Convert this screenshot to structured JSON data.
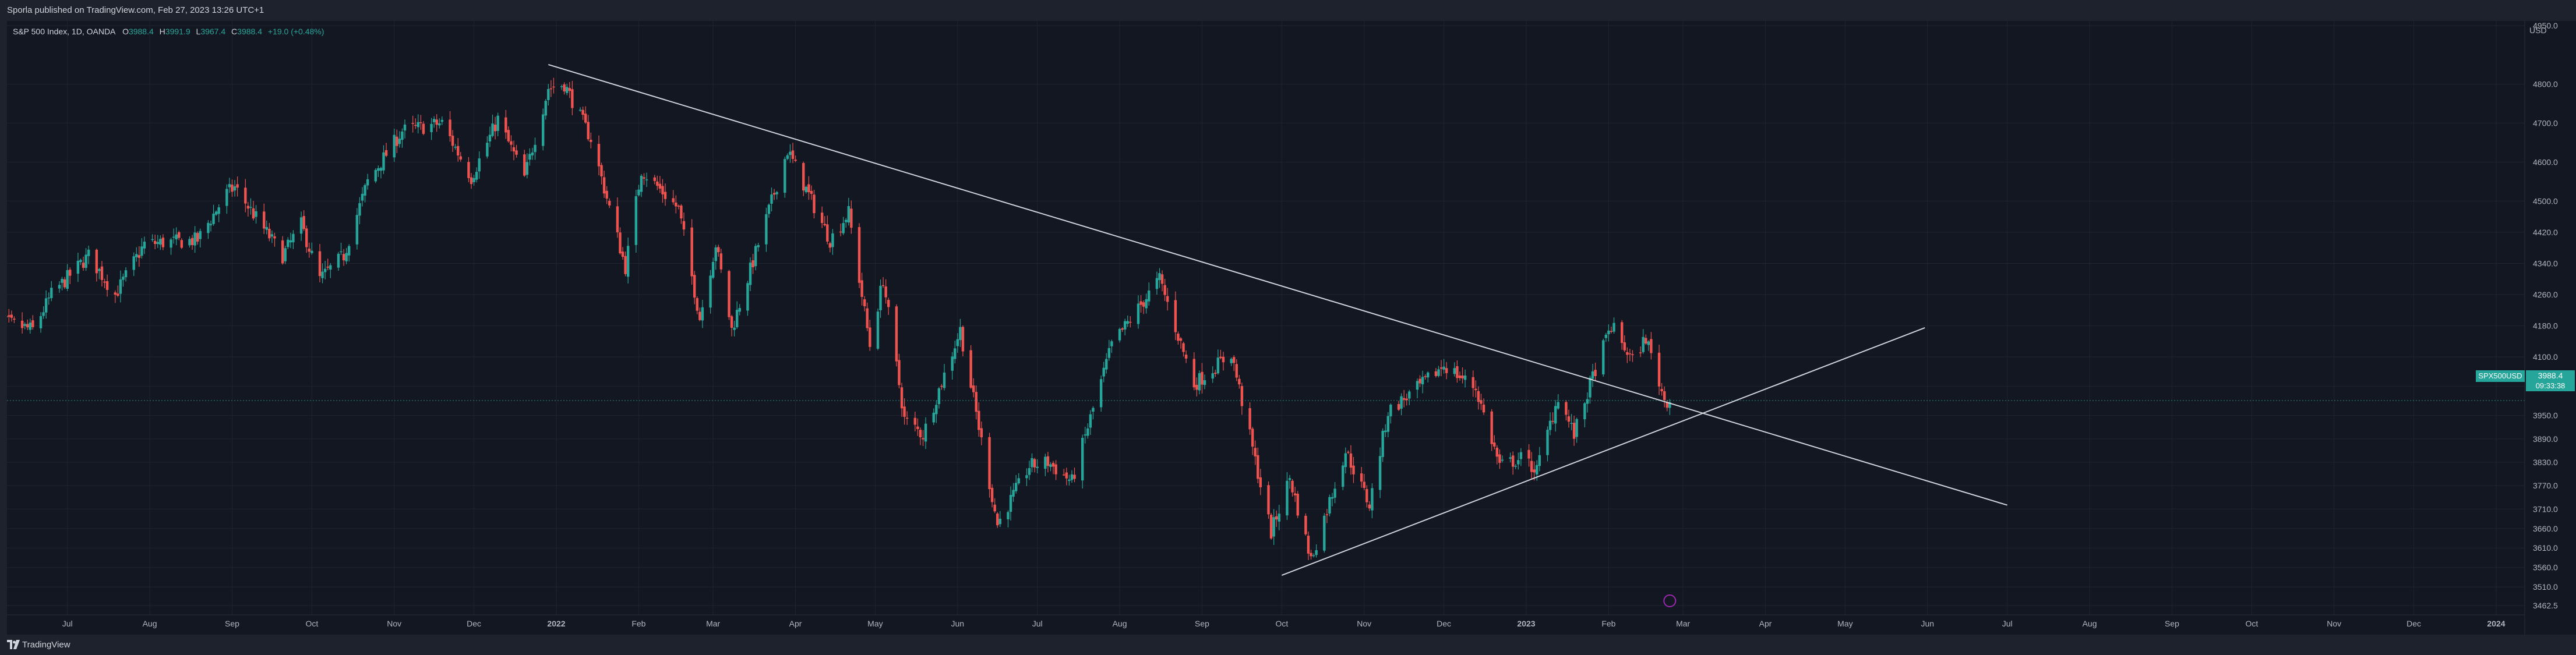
{
  "header": {
    "published_text": "Sporla published on TradingView.com, Feb 27, 2023 13:26 UTC+1"
  },
  "legend": {
    "symbol_text": "S&P 500 Index, 1D, OANDA",
    "open_label": "O",
    "open_value": "3988.4",
    "high_label": "H",
    "high_value": "3991.9",
    "low_label": "L",
    "low_value": "3967.4",
    "close_label": "C",
    "close_value": "3988.4",
    "change_text": "+19.0 (+0.48%)"
  },
  "price_axis": {
    "unit": "USD",
    "current_price": "3988.4",
    "countdown": "09:33:38",
    "symbol_tag": "SPX500USD"
  },
  "footer": {
    "logo_text": "TradingView"
  },
  "colors": {
    "background": "#131722",
    "frame": "#1e222d",
    "up": "#26a69a",
    "down": "#ef5350",
    "grid": "#1f2430",
    "text": "#b2b5be",
    "trendline": "#d1d4dc",
    "marker": "#9c27b0"
  },
  "chart_data": {
    "type": "candlestick",
    "title": "S&P 500 Index, 1D, OANDA",
    "xlabel": "",
    "ylabel": "",
    "ylim": [
      3462.5,
      4950
    ],
    "grid": true,
    "y_ticks": [
      "4950.0",
      "4800.0",
      "4700.0",
      "4600.0",
      "4500.0",
      "4420.0",
      "4340.0",
      "4260.0",
      "4180.0",
      "4100.0",
      "4025.0",
      "3950.0",
      "3890.0",
      "3830.0",
      "3770.0",
      "3710.0",
      "3660.0",
      "3610.0",
      "3560.0",
      "3510.0",
      "3462.5"
    ],
    "x_ticks": [
      {
        "label": "Jul",
        "date": "2021-07-01",
        "bold": false
      },
      {
        "label": "Aug",
        "date": "2021-08-01",
        "bold": false
      },
      {
        "label": "Sep",
        "date": "2021-09-01",
        "bold": false
      },
      {
        "label": "Oct",
        "date": "2021-10-01",
        "bold": false
      },
      {
        "label": "Nov",
        "date": "2021-11-01",
        "bold": false
      },
      {
        "label": "Dec",
        "date": "2021-12-01",
        "bold": false
      },
      {
        "label": "2022",
        "date": "2022-01-01",
        "bold": true
      },
      {
        "label": "Feb",
        "date": "2022-02-01",
        "bold": false
      },
      {
        "label": "Mar",
        "date": "2022-03-01",
        "bold": false
      },
      {
        "label": "Apr",
        "date": "2022-04-01",
        "bold": false
      },
      {
        "label": "May",
        "date": "2022-05-01",
        "bold": false
      },
      {
        "label": "Jun",
        "date": "2022-06-01",
        "bold": false
      },
      {
        "label": "Jul",
        "date": "2022-07-01",
        "bold": false
      },
      {
        "label": "Aug",
        "date": "2022-08-01",
        "bold": false
      },
      {
        "label": "Sep",
        "date": "2022-09-01",
        "bold": false
      },
      {
        "label": "Oct",
        "date": "2022-10-01",
        "bold": false
      },
      {
        "label": "Nov",
        "date": "2022-11-01",
        "bold": false
      },
      {
        "label": "Dec",
        "date": "2022-12-01",
        "bold": false
      },
      {
        "label": "2023",
        "date": "2023-01-01",
        "bold": true
      },
      {
        "label": "Feb",
        "date": "2023-02-01",
        "bold": false
      },
      {
        "label": "Mar",
        "date": "2023-03-01",
        "bold": false
      },
      {
        "label": "Apr",
        "date": "2023-04-01",
        "bold": false
      },
      {
        "label": "May",
        "date": "2023-05-01",
        "bold": false
      },
      {
        "label": "Jun",
        "date": "2023-06-01",
        "bold": false
      },
      {
        "label": "Jul",
        "date": "2023-07-01",
        "bold": false
      },
      {
        "label": "Aug",
        "date": "2023-08-01",
        "bold": false
      },
      {
        "label": "Sep",
        "date": "2023-09-01",
        "bold": false
      },
      {
        "label": "Oct",
        "date": "2023-10-01",
        "bold": false
      },
      {
        "label": "Nov",
        "date": "2023-11-01",
        "bold": false
      },
      {
        "label": "Dec",
        "date": "2023-12-01",
        "bold": false
      },
      {
        "label": "2024",
        "date": "2024-01-01",
        "bold": true
      }
    ],
    "close_path": [
      [
        "2021-06-01",
        4200
      ],
      [
        "2021-06-18",
        4170
      ],
      [
        "2021-06-25",
        4260
      ],
      [
        "2021-07-09",
        4360
      ],
      [
        "2021-07-19",
        4260
      ],
      [
        "2021-07-30",
        4390
      ],
      [
        "2021-08-19",
        4400
      ],
      [
        "2021-08-30",
        4520
      ],
      [
        "2021-09-02",
        4535
      ],
      [
        "2021-09-20",
        4360
      ],
      [
        "2021-09-27",
        4440
      ],
      [
        "2021-10-04",
        4300
      ],
      [
        "2021-10-13",
        4360
      ],
      [
        "2021-10-22",
        4550
      ],
      [
        "2021-11-04",
        4680
      ],
      [
        "2021-11-19",
        4700
      ],
      [
        "2021-11-30",
        4560
      ],
      [
        "2021-12-10",
        4710
      ],
      [
        "2021-12-20",
        4560
      ],
      [
        "2021-12-29",
        4790
      ],
      [
        "2022-01-04",
        4800
      ],
      [
        "2022-01-14",
        4660
      ],
      [
        "2022-01-27",
        4330
      ],
      [
        "2022-02-02",
        4580
      ],
      [
        "2022-02-16",
        4480
      ],
      [
        "2022-02-24",
        4200
      ],
      [
        "2022-03-02",
        4390
      ],
      [
        "2022-03-08",
        4170
      ],
      [
        "2022-03-29",
        4630
      ],
      [
        "2022-04-14",
        4400
      ],
      [
        "2022-04-21",
        4470
      ],
      [
        "2022-04-29",
        4130
      ],
      [
        "2022-05-04",
        4300
      ],
      [
        "2022-05-12",
        3940
      ],
      [
        "2022-05-19",
        3900
      ],
      [
        "2022-06-02",
        4170
      ],
      [
        "2022-06-16",
        3670
      ],
      [
        "2022-06-28",
        3820
      ],
      [
        "2022-07-05",
        3830
      ],
      [
        "2022-07-14",
        3780
      ],
      [
        "2022-07-29",
        4130
      ],
      [
        "2022-08-16",
        4300
      ],
      [
        "2022-08-29",
        4030
      ],
      [
        "2022-09-12",
        4110
      ],
      [
        "2022-09-27",
        3650
      ],
      [
        "2022-10-04",
        3790
      ],
      [
        "2022-10-12",
        3580
      ],
      [
        "2022-10-25",
        3860
      ],
      [
        "2022-11-03",
        3720
      ],
      [
        "2022-11-10",
        3960
      ],
      [
        "2022-11-23",
        4030
      ],
      [
        "2022-12-01",
        4080
      ],
      [
        "2022-12-13",
        4020
      ],
      [
        "2022-12-22",
        3820
      ],
      [
        "2022-12-30",
        3840
      ],
      [
        "2023-01-05",
        3810
      ],
      [
        "2023-01-13",
        4000
      ],
      [
        "2023-01-19",
        3900
      ],
      [
        "2023-01-27",
        4070
      ],
      [
        "2023-02-02",
        4180
      ],
      [
        "2023-02-10",
        4090
      ],
      [
        "2023-02-15",
        4150
      ],
      [
        "2023-02-22",
        3990
      ],
      [
        "2023-02-27",
        3988.4
      ]
    ],
    "trendlines": [
      {
        "name": "",
        "from": [
          "2021-12-29",
          4850
        ],
        "to": [
          "2023-07-01",
          3720
        ]
      },
      {
        "name": "",
        "from": [
          "2022-10-01",
          3540
        ],
        "to": [
          "2023-05-31",
          4175
        ]
      }
    ]
  }
}
